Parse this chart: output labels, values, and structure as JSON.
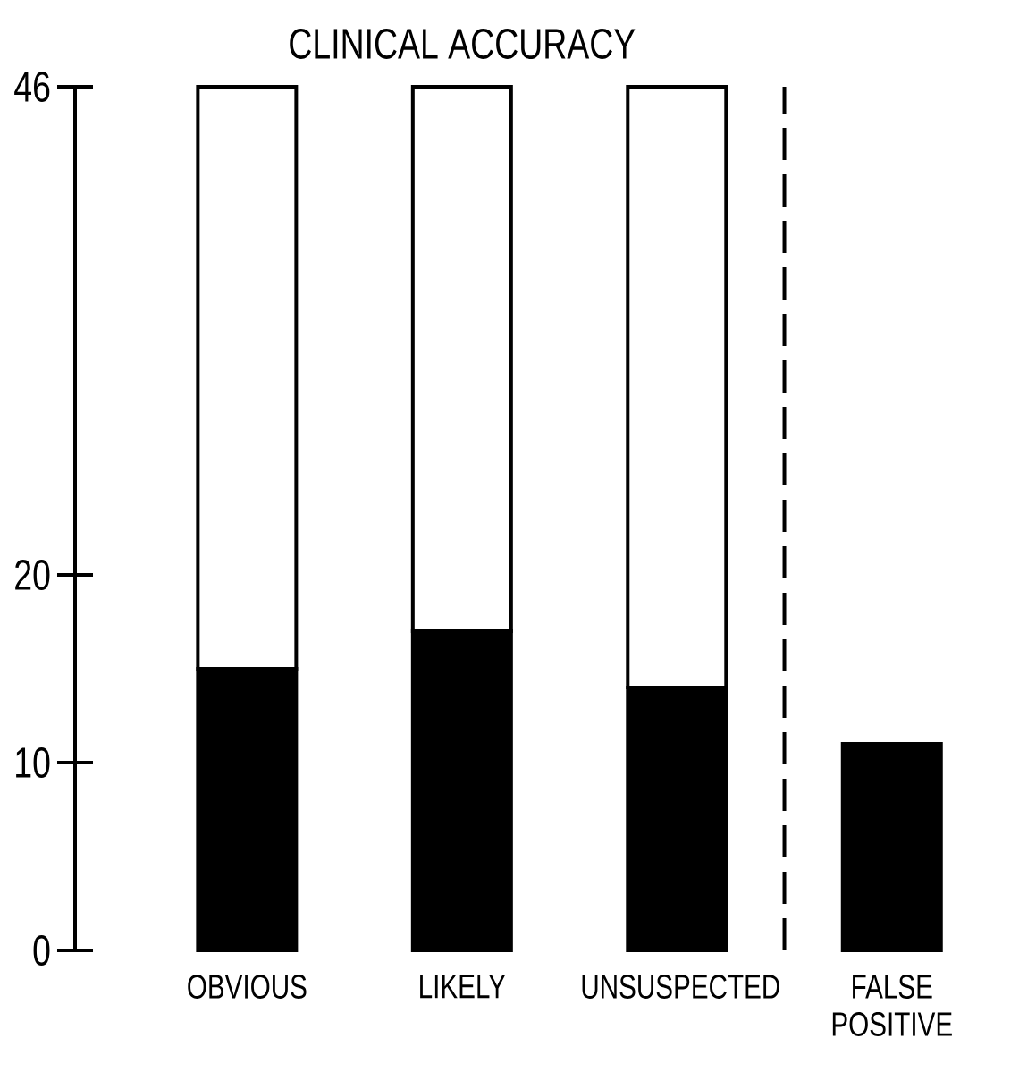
{
  "chart_data": {
    "type": "bar",
    "title": "CLINICAL ACCURACY",
    "categories": [
      "OBVIOUS",
      "LIKELY",
      "UNSUSPECTED",
      "FALSE POSITIVE"
    ],
    "stacked": true,
    "series": [
      {
        "color": "#000000",
        "values": [
          15,
          17,
          14,
          11
        ]
      },
      {
        "color": "#ffffff",
        "values": [
          31,
          29,
          32,
          null
        ]
      }
    ],
    "ylim": [
      0,
      46
    ],
    "yticks": [
      0,
      10,
      20,
      46
    ]
  }
}
